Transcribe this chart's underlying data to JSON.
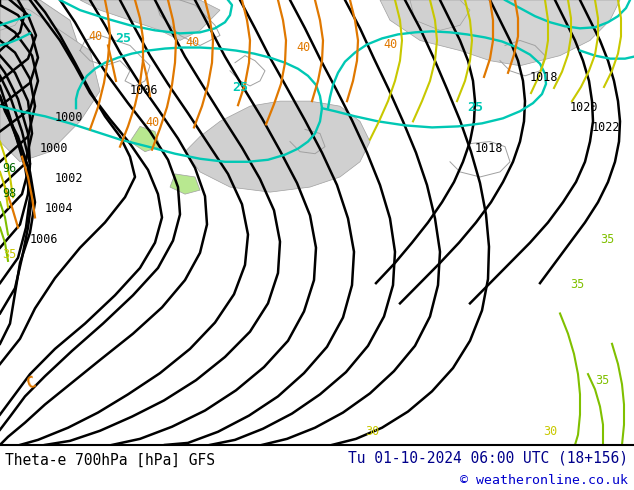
{
  "title_left": "Theta-e 700hPa [hPa] GFS",
  "title_right": "Tu 01-10-2024 06:00 UTC (18+156)",
  "copyright": "© weatheronline.co.uk",
  "footer_bg": "#ffffff",
  "footer_text_left": "#000000",
  "footer_text_right": "#00008b",
  "footer_text_copy": "#0000cd",
  "map_bg": "#b8e890",
  "sea_color": "#c8c8c8",
  "coast_color": "#a0a0a0",
  "fig_width": 6.34,
  "fig_height": 4.9,
  "dpi": 100
}
